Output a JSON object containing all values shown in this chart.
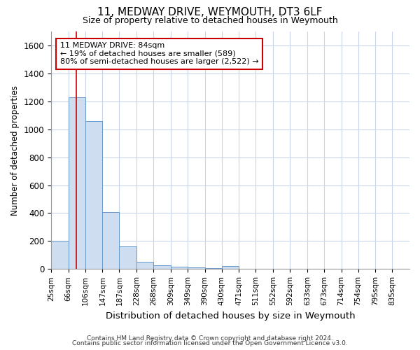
{
  "title": "11, MEDWAY DRIVE, WEYMOUTH, DT3 6LF",
  "subtitle": "Size of property relative to detached houses in Weymouth",
  "xlabel": "Distribution of detached houses by size in Weymouth",
  "ylabel": "Number of detached properties",
  "footer_line1": "Contains HM Land Registry data © Crown copyright and database right 2024.",
  "footer_line2": "Contains public sector information licensed under the Open Government Licence v3.0.",
  "bar_edges": [
    25,
    66,
    106,
    147,
    187,
    228,
    268,
    309,
    349,
    390,
    430,
    471,
    511,
    552,
    592,
    633,
    673,
    714,
    754,
    795,
    835
  ],
  "bar_values": [
    200,
    1230,
    1060,
    405,
    160,
    52,
    28,
    18,
    10,
    7,
    20,
    0,
    0,
    0,
    0,
    0,
    0,
    0,
    0,
    0
  ],
  "property_sqm": 84,
  "property_label": "11 MEDWAY DRIVE: 84sqm",
  "annotation_line1": "← 19% of detached houses are smaller (589)",
  "annotation_line2": "80% of semi-detached houses are larger (2,522) →",
  "bar_color": "#cfddf0",
  "bar_edge_color": "#6699cc",
  "red_line_color": "#cc0000",
  "annotation_box_color": "#ffffff",
  "annotation_box_edgecolor": "#cc0000",
  "bg_color": "#ffffff",
  "grid_color": "#c8d4e8",
  "ylim": [
    0,
    1700
  ],
  "yticks": [
    0,
    200,
    400,
    600,
    800,
    1000,
    1200,
    1400,
    1600
  ]
}
